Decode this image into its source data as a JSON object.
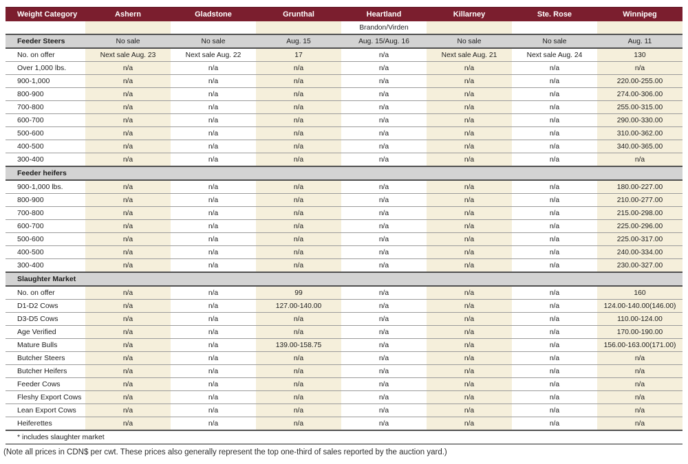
{
  "page": {
    "footnote": "* includes slaughter market",
    "note": "(Note all prices in CDN$ per cwt. These prices also generally represent the top one-third of sales reported by the auction yard.)"
  },
  "colors": {
    "header_bg": "#7b1e2e",
    "header_edge": "#5e1422",
    "header_text": "#ffffff",
    "stripe_cream": "#f5efdb",
    "section_bg": "#d3d3d3",
    "section_border": "#4f4f4f",
    "row_border": "#9a9a9a",
    "bottom_border": "#8c8c8c",
    "text": "#1b1b1b"
  },
  "table": {
    "columns": [
      "Weight Category",
      "Ashern",
      "Gladstone",
      "Grunthal",
      "Heartland",
      "Killarney",
      "Ste. Rose",
      "Winnipeg"
    ],
    "subheader": [
      "",
      "",
      "",
      "Brandon/Virden",
      "",
      "",
      ""
    ],
    "sections": [
      {
        "title": "Feeder Steers",
        "title_values": [
          "No sale",
          "No sale",
          "Aug. 15",
          "Aug. 15/Aug. 16",
          "No sale",
          "No sale",
          "Aug. 11"
        ],
        "rows": [
          {
            "label": "No. on offer",
            "values": [
              "Next sale Aug. 23",
              "Next sale Aug. 22",
              "17",
              "n/a",
              "Next sale Aug. 21",
              "Next sale Aug. 24",
              "130"
            ]
          },
          {
            "label": "Over 1,000 lbs.",
            "values": [
              "n/a",
              "n/a",
              "n/a",
              "n/a",
              "n/a",
              "n/a",
              "n/a"
            ]
          },
          {
            "label": "900-1,000",
            "values": [
              "n/a",
              "n/a",
              "n/a",
              "n/a",
              "n/a",
              "n/a",
              "220.00-255.00"
            ]
          },
          {
            "label": "800-900",
            "values": [
              "n/a",
              "n/a",
              "n/a",
              "n/a",
              "n/a",
              "n/a",
              "274.00-306.00"
            ]
          },
          {
            "label": "700-800",
            "values": [
              "n/a",
              "n/a",
              "n/a",
              "n/a",
              "n/a",
              "n/a",
              "255.00-315.00"
            ]
          },
          {
            "label": "600-700",
            "values": [
              "n/a",
              "n/a",
              "n/a",
              "n/a",
              "n/a",
              "n/a",
              "290.00-330.00"
            ]
          },
          {
            "label": "500-600",
            "values": [
              "n/a",
              "n/a",
              "n/a",
              "n/a",
              "n/a",
              "n/a",
              "310.00-362.00"
            ]
          },
          {
            "label": "400-500",
            "values": [
              "n/a",
              "n/a",
              "n/a",
              "n/a",
              "n/a",
              "n/a",
              "340.00-365.00"
            ]
          },
          {
            "label": "300-400",
            "values": [
              "n/a",
              "n/a",
              "n/a",
              "n/a",
              "n/a",
              "n/a",
              "n/a"
            ]
          }
        ]
      },
      {
        "title": "Feeder heifers",
        "title_values": [
          "",
          "",
          "",
          "",
          "",
          "",
          ""
        ],
        "rows": [
          {
            "label": "900-1,000 lbs.",
            "values": [
              "n/a",
              "n/a",
              "n/a",
              "n/a",
              "n/a",
              "n/a",
              "180.00-227.00"
            ]
          },
          {
            "label": "800-900",
            "values": [
              "n/a",
              "n/a",
              "n/a",
              "n/a",
              "n/a",
              "n/a",
              "210.00-277.00"
            ]
          },
          {
            "label": "700-800",
            "values": [
              "n/a",
              "n/a",
              "n/a",
              "n/a",
              "n/a",
              "n/a",
              "215.00-298.00"
            ]
          },
          {
            "label": "600-700",
            "values": [
              "n/a",
              "n/a",
              "n/a",
              "n/a",
              "n/a",
              "n/a",
              "225.00-296.00"
            ]
          },
          {
            "label": "500-600",
            "values": [
              "n/a",
              "n/a",
              "n/a",
              "n/a",
              "n/a",
              "n/a",
              "225.00-317.00"
            ]
          },
          {
            "label": "400-500",
            "values": [
              "n/a",
              "n/a",
              "n/a",
              "n/a",
              "n/a",
              "n/a",
              "240.00-334.00"
            ]
          },
          {
            "label": "300-400",
            "values": [
              "n/a",
              "n/a",
              "n/a",
              "n/a",
              "n/a",
              "n/a",
              "230.00-327.00"
            ]
          }
        ]
      },
      {
        "title": "Slaughter Market",
        "title_values": [
          "",
          "",
          "",
          "",
          "",
          "",
          ""
        ],
        "rows": [
          {
            "label": "No. on offer",
            "values": [
              "n/a",
              "n/a",
              "99",
              "n/a",
              "n/a",
              "n/a",
              "160"
            ]
          },
          {
            "label": "D1-D2 Cows",
            "values": [
              "n/a",
              "n/a",
              "127.00-140.00",
              "n/a",
              "n/a",
              "n/a",
              "124.00-140.00(146.00)"
            ]
          },
          {
            "label": "D3-D5 Cows",
            "values": [
              "n/a",
              "n/a",
              "n/a",
              "n/a",
              "n/a",
              "n/a",
              "110.00-124.00"
            ]
          },
          {
            "label": "Age Verified",
            "values": [
              "n/a",
              "n/a",
              "n/a",
              "n/a",
              "n/a",
              "n/a",
              "170.00-190.00"
            ]
          },
          {
            "label": "Mature Bulls",
            "values": [
              "n/a",
              "n/a",
              "139.00-158.75",
              "n/a",
              "n/a",
              "n/a",
              "156.00-163.00(171.00)"
            ]
          },
          {
            "label": "Butcher Steers",
            "values": [
              "n/a",
              "n/a",
              "n/a",
              "n/a",
              "n/a",
              "n/a",
              "n/a"
            ]
          },
          {
            "label": "Butcher Heifers",
            "values": [
              "n/a",
              "n/a",
              "n/a",
              "n/a",
              "n/a",
              "n/a",
              "n/a"
            ]
          },
          {
            "label": "Feeder Cows",
            "values": [
              "n/a",
              "n/a",
              "n/a",
              "n/a",
              "n/a",
              "n/a",
              "n/a"
            ]
          },
          {
            "label": "Fleshy Export Cows",
            "values": [
              "n/a",
              "n/a",
              "n/a",
              "n/a",
              "n/a",
              "n/a",
              "n/a"
            ]
          },
          {
            "label": "Lean Export Cows",
            "values": [
              "n/a",
              "n/a",
              "n/a",
              "n/a",
              "n/a",
              "n/a",
              "n/a"
            ]
          },
          {
            "label": "Heiferettes",
            "values": [
              "n/a",
              "n/a",
              "n/a",
              "n/a",
              "n/a",
              "n/a",
              "n/a"
            ]
          }
        ]
      }
    ]
  }
}
